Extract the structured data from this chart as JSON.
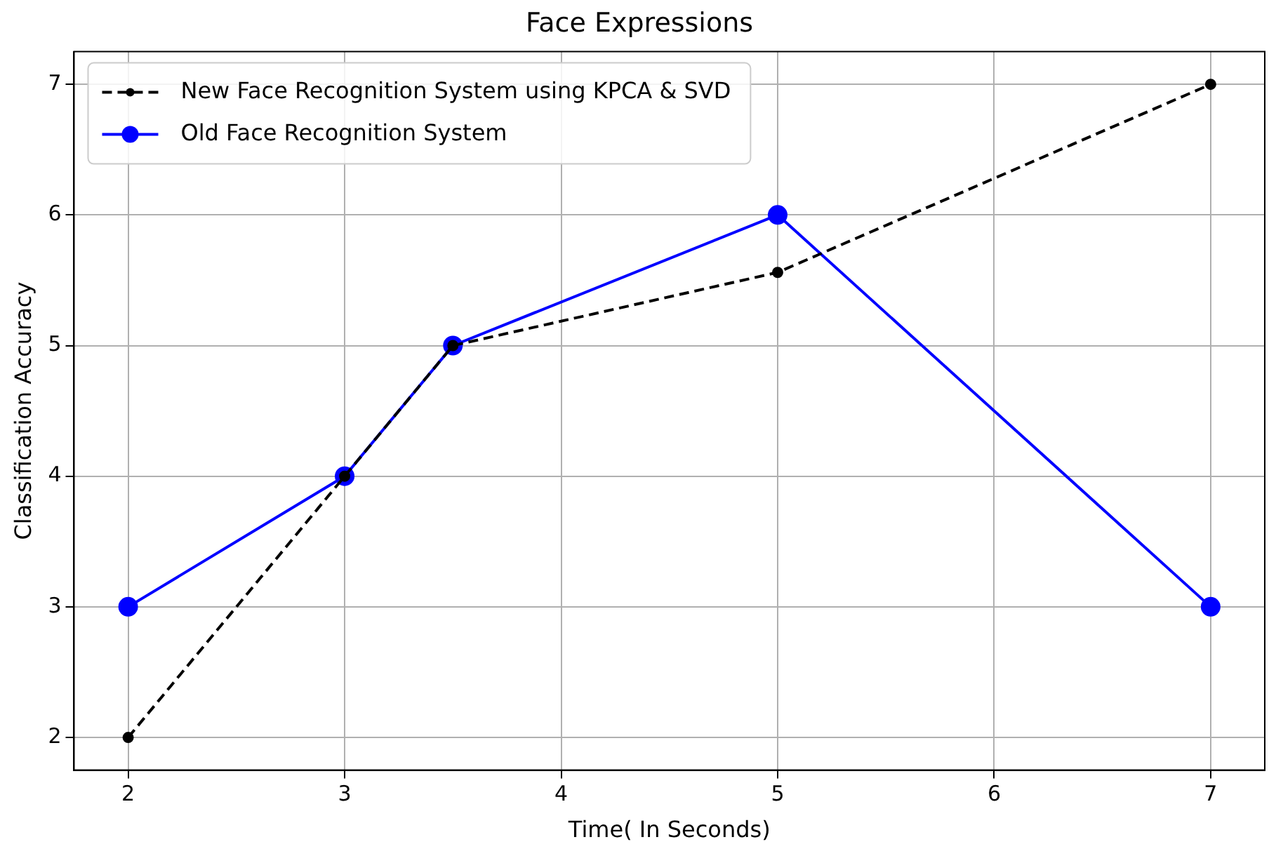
{
  "chart_data": {
    "type": "line",
    "title": "Face Expressions",
    "xlabel": "Time( In Seconds)",
    "ylabel": "Classification Accuracy",
    "x": [
      2,
      3,
      3.5,
      5,
      7
    ],
    "series": [
      {
        "name": "New Face Recognition System using KPCA & SVD",
        "color": "#000000",
        "values": [
          2,
          4,
          5,
          5.56,
          7
        ],
        "line_style": "dashed",
        "marker": "circle"
      },
      {
        "name": "Old Face Recognition System",
        "color": "#0000ff",
        "values": [
          3,
          4,
          5,
          6,
          3
        ],
        "line_style": "solid",
        "marker": "circle"
      }
    ],
    "xlim": [
      1.75,
      7.25
    ],
    "xticks": [
      2,
      3,
      4,
      5,
      6,
      7
    ],
    "ylim": [
      1.75,
      7.25
    ],
    "yticks": [
      2,
      3,
      4,
      5,
      6,
      7
    ],
    "grid": true,
    "legend": "top left"
  }
}
